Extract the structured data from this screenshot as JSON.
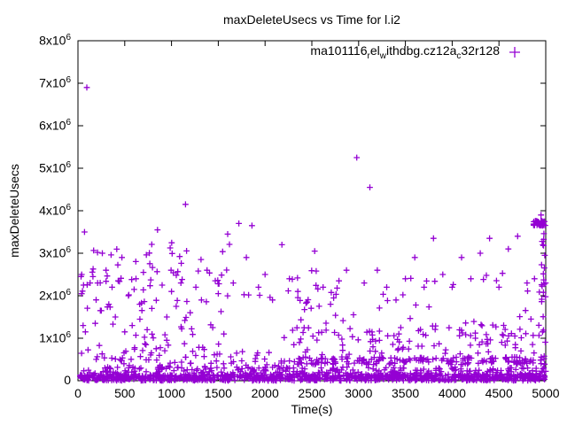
{
  "chart_data": {
    "type": "scatter",
    "title": "maxDeleteUsecs vs Time for l.i2",
    "xlabel": "Time(s)",
    "ylabel": "maxDeleteUsecs",
    "xlim": [
      0,
      5000
    ],
    "ylim": [
      0,
      8000000
    ],
    "x_ticks": [
      0,
      500,
      1000,
      1500,
      2000,
      2500,
      3000,
      3500,
      4000,
      4500,
      5000
    ],
    "y_ticks": [
      0,
      1000000,
      2000000,
      3000000,
      4000000,
      5000000,
      6000000,
      7000000,
      8000000
    ],
    "y_tick_label_style": "Nx10^6",
    "grid": false,
    "marker": "+",
    "accent_color": "#9400d3",
    "legend": {
      "position": "top-right-inside",
      "entries": [
        {
          "label": "ma101116_rel_withdbg.cz12a_c32r128",
          "label_segments": [
            {
              "text": "ma101116"
            },
            {
              "text": "r",
              "sub": true
            },
            {
              "text": "el"
            },
            {
              "text": "w",
              "sub": true
            },
            {
              "text": "ithdbg.cz12a"
            },
            {
              "text": "c",
              "sub": true
            },
            {
              "text": "32r128"
            }
          ],
          "marker": "+",
          "color": "#9400d3"
        }
      ]
    },
    "series": [
      {
        "name": "ma101116_rel_withdbg.cz12a_c32r128",
        "marker": "+",
        "color": "#9400d3",
        "points": [
          [
            95,
            6900000
          ],
          [
            70,
            3500000
          ],
          [
            40,
            2500000
          ],
          [
            60,
            2250000
          ],
          [
            55,
            1300000
          ],
          [
            80,
            1150000
          ],
          [
            130,
            2300000
          ],
          [
            160,
            2450000
          ],
          [
            185,
            1350000
          ],
          [
            210,
            2300000
          ],
          [
            240,
            1650000
          ],
          [
            260,
            3000000
          ],
          [
            300,
            2600000
          ],
          [
            330,
            1800000
          ],
          [
            365,
            2200000
          ],
          [
            400,
            1500000
          ],
          [
            430,
            2350000
          ],
          [
            470,
            2900000
          ],
          [
            500,
            1150000
          ],
          [
            540,
            2000000
          ],
          [
            580,
            1300000
          ],
          [
            620,
            2400000
          ],
          [
            660,
            1800000
          ],
          [
            700,
            2550000
          ],
          [
            740,
            1200000
          ],
          [
            790,
            1700000
          ],
          [
            850,
            3550000
          ],
          [
            900,
            2250000
          ],
          [
            950,
            1500000
          ],
          [
            1000,
            2100000
          ],
          [
            1050,
            1750000
          ],
          [
            1100,
            2300000
          ],
          [
            1150,
            4150000
          ],
          [
            1200,
            1600000
          ],
          [
            1260,
            2200000
          ],
          [
            1320,
            1900000
          ],
          [
            1380,
            2600000
          ],
          [
            1440,
            1250000
          ],
          [
            1500,
            2050000
          ],
          [
            1560,
            1100000
          ],
          [
            1600,
            3450000
          ],
          [
            1660,
            2300000
          ],
          [
            1720,
            3700000
          ],
          [
            1800,
            2900000
          ],
          [
            1860,
            3650000
          ],
          [
            1930,
            2200000
          ],
          [
            2000,
            2500000
          ],
          [
            2080,
            1900000
          ],
          [
            2180,
            3200000
          ],
          [
            2260,
            2400000
          ],
          [
            2350,
            2100000
          ],
          [
            2450,
            1850000
          ],
          [
            2530,
            3050000
          ],
          [
            2620,
            2200000
          ],
          [
            2700,
            1800000
          ],
          [
            2790,
            2350000
          ],
          [
            2870,
            2600000
          ],
          [
            2980,
            5250000
          ],
          [
            3060,
            2300000
          ],
          [
            3120,
            4550000
          ],
          [
            3200,
            2600000
          ],
          [
            3300,
            2200000
          ],
          [
            3400,
            1900000
          ],
          [
            3500,
            2400000
          ],
          [
            3600,
            2900000
          ],
          [
            3700,
            2200000
          ],
          [
            3800,
            3350000
          ],
          [
            3900,
            2500000
          ],
          [
            4000,
            2200000
          ],
          [
            4100,
            2900000
          ],
          [
            4200,
            2400000
          ],
          [
            4300,
            3000000
          ],
          [
            4400,
            3350000
          ],
          [
            4500,
            2200000
          ],
          [
            4600,
            3100000
          ],
          [
            4700,
            3400000
          ],
          [
            4800,
            2300000
          ],
          [
            4880,
            2400000
          ],
          [
            4950,
            3900000
          ],
          [
            4990,
            2950000
          ]
        ],
        "dense_clusters": [
          {
            "x_range": [
              0,
              5000
            ],
            "y_range": [
              0,
              150000
            ],
            "count": 900,
            "note": "solid band hugging the x-axis"
          },
          {
            "x_range": [
              0,
              5000
            ],
            "y_range": [
              150000,
              320000
            ],
            "count": 220
          },
          {
            "x_range": [
              2150,
              5000
            ],
            "y_range": [
              380000,
              560000
            ],
            "count": 170,
            "note": "second dense band appearing after t~2200"
          },
          {
            "x_range": [
              30,
              2200
            ],
            "y_range": [
              300000,
              900000
            ],
            "count": 80
          },
          {
            "x_range": [
              2200,
              5000
            ],
            "y_range": [
              600000,
              1350000
            ],
            "count": 110
          },
          {
            "x_range": [
              30,
              1650
            ],
            "y_range": [
              900000,
              3250000
            ],
            "count": 80
          },
          {
            "x_range": [
              1650,
              5000
            ],
            "y_range": [
              1350000,
              2600000
            ],
            "count": 55
          },
          {
            "x_range": [
              4870,
              5000
            ],
            "y_range": [
              3650000,
              3760000
            ],
            "count": 35,
            "note": "short horizontal streak near right edge"
          },
          {
            "x_range": [
              4955,
              5000
            ],
            "y_range": [
              200000,
              3600000
            ],
            "count": 18,
            "note": "right-edge column"
          }
        ]
      }
    ]
  }
}
